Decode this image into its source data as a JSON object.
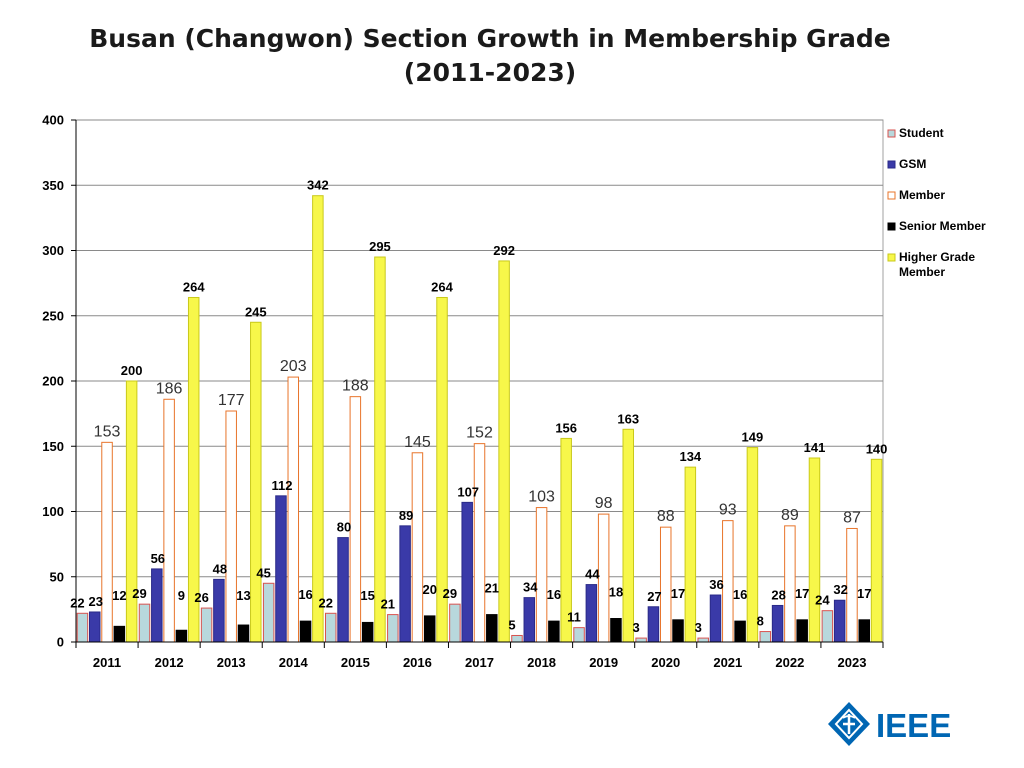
{
  "chart_data": {
    "type": "bar",
    "title_lines": [
      "Busan (Changwon) Section Growth in Membership Grade",
      "(2011-2023)"
    ],
    "categories": [
      "2011",
      "2012",
      "2013",
      "2014",
      "2015",
      "2016",
      "2017",
      "2018",
      "2019",
      "2020",
      "2021",
      "2022",
      "2023"
    ],
    "ylim": [
      0,
      400
    ],
    "yticks": [
      0,
      50,
      100,
      150,
      200,
      250,
      300,
      350,
      400
    ],
    "grid": true,
    "legend_position": "right",
    "series": [
      {
        "name": "Student",
        "fill": "#b8d8dc",
        "stroke": "#d9534f",
        "label_style": "bold",
        "values": [
          22,
          29,
          26,
          45,
          22,
          21,
          29,
          5,
          11,
          3,
          3,
          8,
          24
        ]
      },
      {
        "name": "GSM",
        "fill": "#3a3aa8",
        "stroke": "#2a2a88",
        "label_style": "bold",
        "values": [
          23,
          56,
          48,
          112,
          80,
          89,
          107,
          34,
          44,
          27,
          36,
          28,
          32
        ]
      },
      {
        "name": "Member",
        "fill": "#ffffff",
        "stroke": "#e8742a",
        "label_style": "normal",
        "values": [
          153,
          186,
          177,
          203,
          188,
          145,
          152,
          103,
          98,
          88,
          93,
          89,
          87
        ]
      },
      {
        "name": "Senior Member",
        "fill": "#000000",
        "stroke": "#000000",
        "label_style": "bold",
        "values": [
          12,
          9,
          13,
          16,
          15,
          20,
          21,
          16,
          18,
          17,
          16,
          17,
          17
        ]
      },
      {
        "name": "Higher Grade Member",
        "legend_lines": [
          "Higher Grade",
          "Member"
        ],
        "fill": "#f7f74a",
        "stroke": "#c9c91a",
        "label_style": "bold",
        "values": [
          200,
          264,
          245,
          342,
          295,
          264,
          292,
          156,
          163,
          134,
          149,
          141,
          140
        ]
      }
    ]
  },
  "logo": {
    "text": "IEEE"
  }
}
